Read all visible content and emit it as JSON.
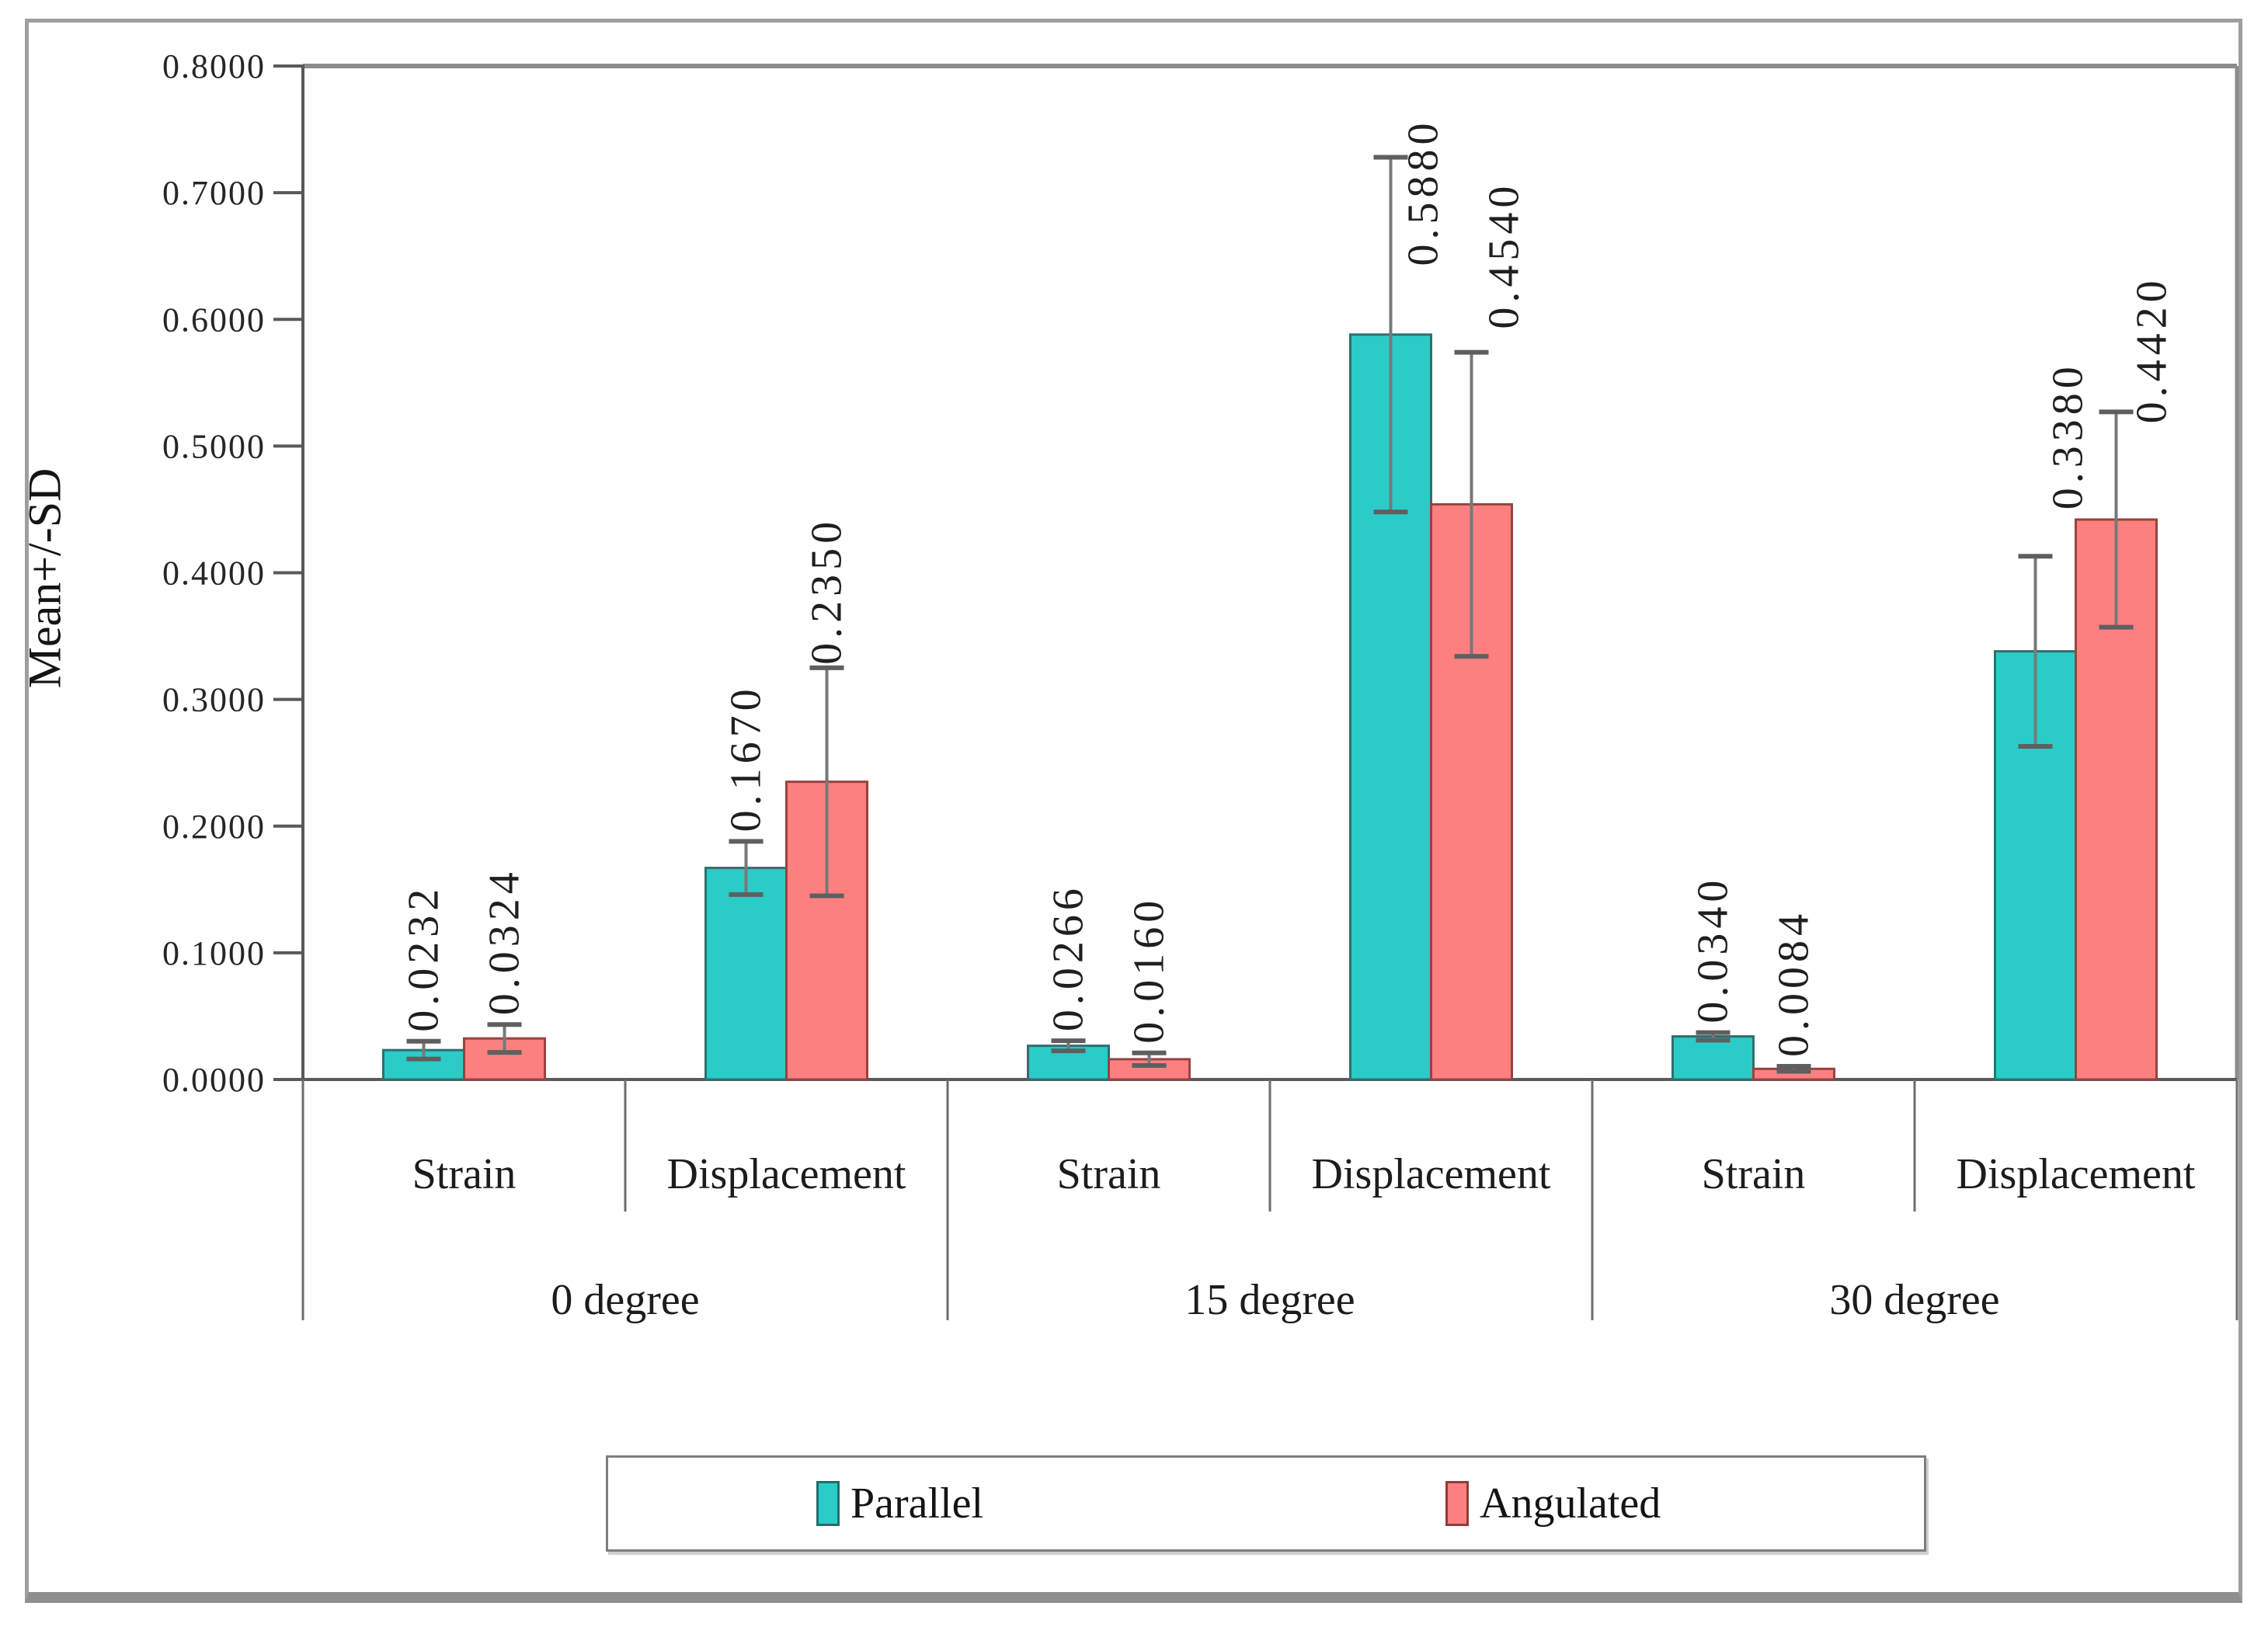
{
  "figure": {
    "frame_color": "#9e9e9e",
    "background": "#ffffff"
  },
  "legend": {
    "items": [
      {
        "label": "Parallel",
        "color": "#2BCBC8",
        "border_color": "#1e6f6d"
      },
      {
        "label": "Angulated",
        "color": "#FC8080",
        "border_color": "#8e3d39"
      }
    ]
  },
  "chart_data": {
    "type": "bar",
    "title": "",
    "y_axis": {
      "title": "Mean+/-SD",
      "min": 0.0,
      "max": 0.8,
      "tick_step": 0.1,
      "tick_labels": [
        "0.0000",
        "0.1000",
        "0.2000",
        "0.3000",
        "0.4000",
        "0.5000",
        "0.6000",
        "0.7000",
        "0.8000"
      ]
    },
    "x_axis": {
      "level1": [
        "Strain",
        "Displacement",
        "Strain",
        "Displacement",
        "Strain",
        "Displacement"
      ],
      "level2": [
        "0 degree",
        "15 degree",
        "30 degree"
      ]
    },
    "grid": false,
    "error_bars": true,
    "legend_position": "bottom-box",
    "series": [
      {
        "name": "Parallel",
        "color": "#2BCBC8",
        "border_color": "#2f6f6d",
        "values": [
          0.0232,
          0.167,
          0.0266,
          0.588,
          0.034,
          0.338
        ],
        "sds": [
          0.007,
          0.021,
          0.004,
          0.14,
          0.003,
          0.075
        ],
        "data_labels": [
          "0.0232",
          "0.1670",
          "0.0266",
          "0.5880",
          "0.0340",
          "0.3380"
        ]
      },
      {
        "name": "Angulated",
        "color": "#FC8080",
        "border_color": "#964341",
        "values": [
          0.0324,
          0.235,
          0.016,
          0.454,
          0.0084,
          0.442
        ],
        "sds": [
          0.011,
          0.09,
          0.005,
          0.12,
          0.002,
          0.085
        ],
        "data_labels": [
          "0.0324",
          "0.2350",
          "0.0160",
          "0.4540",
          "0.0084",
          "0.4420"
        ]
      }
    ]
  }
}
